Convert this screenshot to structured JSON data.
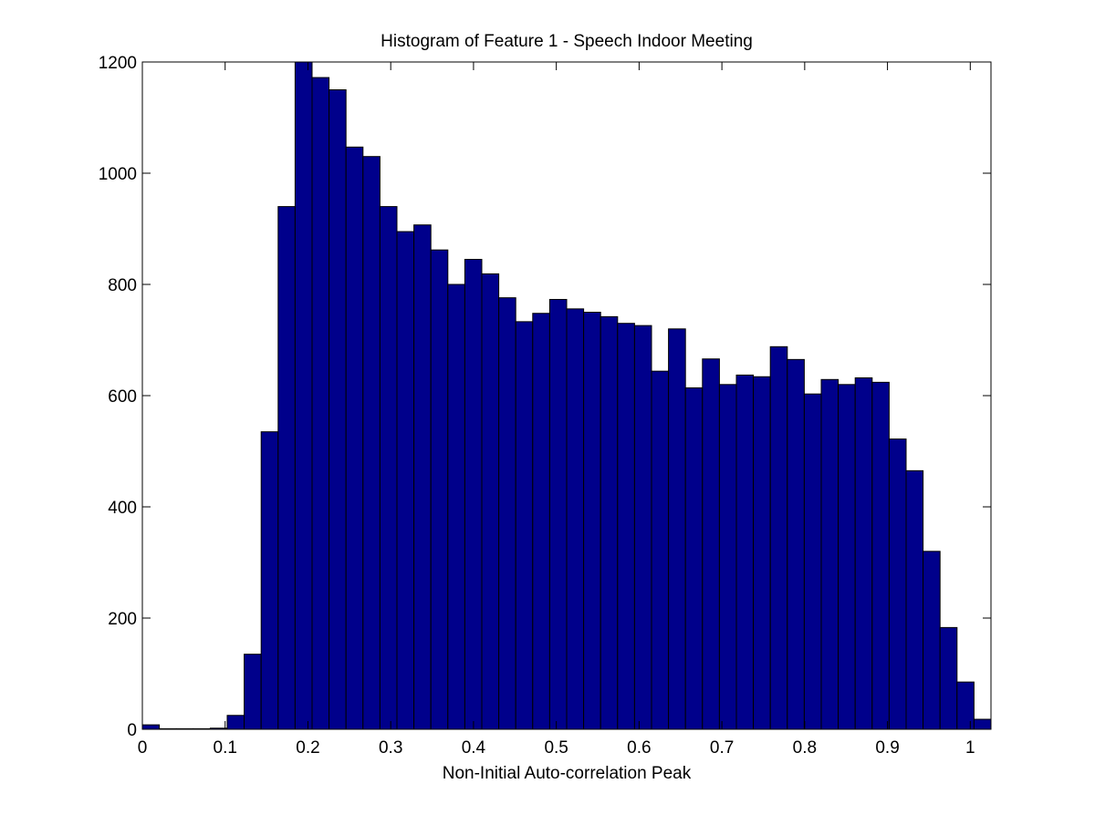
{
  "chart_data": {
    "type": "bar",
    "title": "Histogram of Feature 1 - Speech Indoor Meeting",
    "xlabel": "Non-Initial Auto-correlation Peak",
    "ylabel": "",
    "xlim": [
      0,
      1.025
    ],
    "ylim": [
      0,
      1200
    ],
    "grid": false,
    "legend": "none",
    "bar_color": "#00008B",
    "bar_edge_color": "#000000",
    "xticks": [
      0,
      0.1,
      0.2,
      0.3,
      0.4,
      0.5,
      0.6,
      0.7,
      0.8,
      0.9,
      1
    ],
    "xtick_labels": [
      "0",
      "0.1",
      "0.2",
      "0.3",
      "0.4",
      "0.5",
      "0.6",
      "0.7",
      "0.8",
      "0.9",
      "1"
    ],
    "yticks": [
      0,
      200,
      400,
      600,
      800,
      1000,
      1200
    ],
    "ytick_labels": [
      "0",
      "200",
      "400",
      "600",
      "800",
      "1000",
      "1200"
    ],
    "bin_width": 0.0205,
    "bin_centers": [
      0.01025,
      0.03075,
      0.05125,
      0.07175,
      0.09225,
      0.11275,
      0.13325,
      0.15375,
      0.17425,
      0.19475,
      0.21525,
      0.23575,
      0.25625,
      0.27675,
      0.29725,
      0.31775,
      0.33825,
      0.35875,
      0.37925,
      0.39975,
      0.42025,
      0.44075,
      0.46125,
      0.48175,
      0.50225,
      0.52275,
      0.54325,
      0.56375,
      0.58425,
      0.60475,
      0.62525,
      0.64575,
      0.66625,
      0.68675,
      0.70725,
      0.72775,
      0.74825,
      0.76875,
      0.78925,
      0.80975,
      0.83025,
      0.85075,
      0.87125,
      0.89175,
      0.91225,
      0.93275,
      0.95325,
      0.97375,
      0.99425,
      1.01475
    ],
    "values": [
      8,
      1,
      1,
      1,
      2,
      25,
      135,
      535,
      940,
      1200,
      1172,
      1150,
      1047,
      1030,
      940,
      895,
      907,
      862,
      800,
      845,
      819,
      776,
      733,
      748,
      773,
      756,
      750,
      742,
      730,
      726,
      644,
      720,
      614,
      666,
      620,
      637,
      634,
      688,
      665,
      603,
      629,
      620,
      632,
      624,
      522,
      465,
      320,
      183,
      85,
      18
    ]
  }
}
